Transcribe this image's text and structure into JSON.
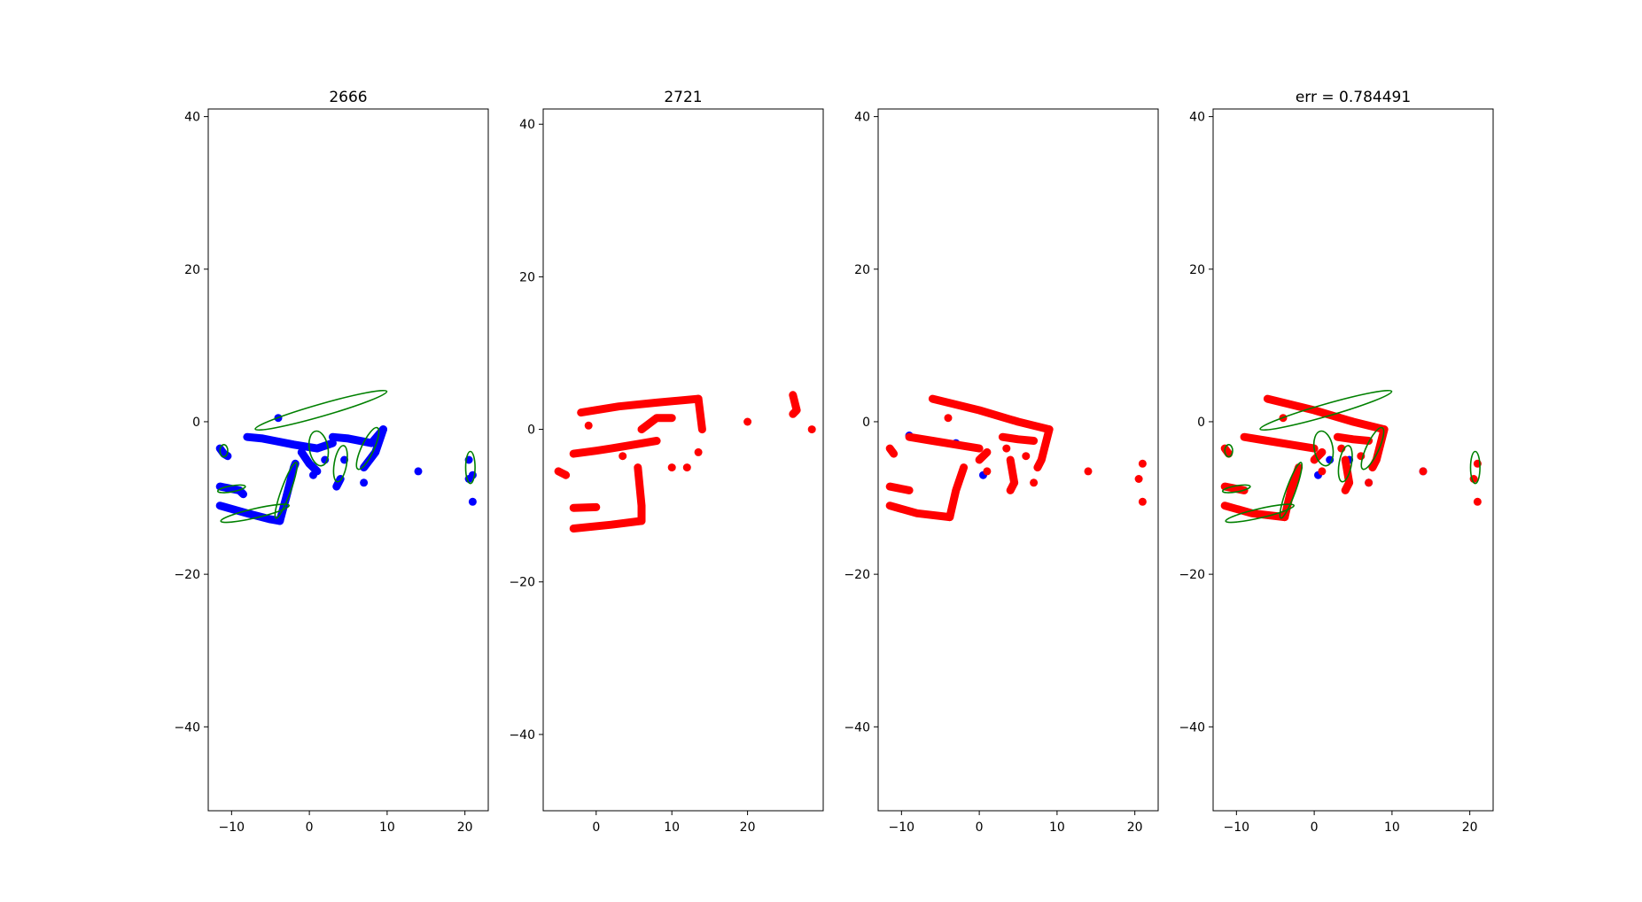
{
  "chart_data": [
    {
      "type": "scatter",
      "title": "2666",
      "xlim": [
        -13,
        23
      ],
      "ylim": [
        -51,
        41
      ],
      "xticks": [
        -10,
        0,
        10,
        20
      ],
      "yticks": [
        -40,
        -20,
        0,
        20,
        40
      ],
      "grid": false,
      "series": [
        {
          "color": "#0000ff",
          "marker": "point",
          "segments": [
            [
              [
                -11.5,
                -3.5
              ],
              [
                -11,
                -4.2
              ],
              [
                -10.5,
                -4.5
              ]
            ],
            [
              [
                -11.5,
                -8.5
              ],
              [
                -9,
                -9
              ],
              [
                -8.5,
                -9.5
              ]
            ],
            [
              [
                -11.5,
                -11
              ],
              [
                -8,
                -12
              ],
              [
                -5,
                -12.8
              ],
              [
                -3.8,
                -13
              ]
            ],
            [
              [
                -3.8,
                -13
              ],
              [
                -3,
                -10
              ],
              [
                -2,
                -6
              ],
              [
                -1.8,
                -5.5
              ]
            ],
            [
              [
                -8,
                -2
              ],
              [
                -6,
                -2.2
              ],
              [
                -4.5,
                -2.5
              ],
              [
                -2,
                -3
              ],
              [
                1,
                -3.5
              ],
              [
                3,
                -2.8
              ]
            ],
            [
              [
                3,
                -2
              ],
              [
                5,
                -2.2
              ],
              [
                8,
                -2.8
              ],
              [
                9.5,
                -1
              ]
            ],
            [
              [
                9.5,
                -1
              ],
              [
                8.5,
                -4
              ],
              [
                7,
                -6
              ]
            ],
            [
              [
                -1,
                -4
              ],
              [
                0,
                -5.5
              ],
              [
                1,
                -6.5
              ]
            ],
            [
              [
                4,
                -7.5
              ],
              [
                3.5,
                -8.5
              ]
            ]
          ],
          "points": [
            [
              -4,
              0.5
            ],
            [
              0.5,
              -7
            ],
            [
              2,
              -5
            ],
            [
              4.5,
              -5
            ],
            [
              7,
              -8
            ],
            [
              14,
              -6.5
            ],
            [
              20.5,
              -7.5
            ],
            [
              21,
              -10.5
            ],
            [
              20.5,
              -5
            ],
            [
              21,
              -7
            ]
          ]
        },
        {
          "color": "#008000",
          "marker": "ellipse",
          "ellipses": [
            {
              "cx": 1.5,
              "cy": 1.5,
              "rx": 8.8,
              "ry": 0.8,
              "angle": -16
            },
            {
              "cx": 1.2,
              "cy": -3.5,
              "rx": 1.2,
              "ry": 2.3,
              "angle": -10
            },
            {
              "cx": 4,
              "cy": -5.5,
              "rx": 0.8,
              "ry": 2.4,
              "angle": 10
            },
            {
              "cx": 7.5,
              "cy": -3.5,
              "rx": 0.8,
              "ry": 3,
              "angle": 25
            },
            {
              "cx": 20.7,
              "cy": -6,
              "rx": 0.6,
              "ry": 2.1,
              "angle": 0
            },
            {
              "cx": -7,
              "cy": -12,
              "rx": 4.5,
              "ry": 0.6,
              "angle": -13
            },
            {
              "cx": -3,
              "cy": -9,
              "rx": 3.8,
              "ry": 0.6,
              "angle": -70
            },
            {
              "cx": -10,
              "cy": -8.8,
              "rx": 1.8,
              "ry": 0.4,
              "angle": -10
            },
            {
              "cx": -11,
              "cy": -3.8,
              "rx": 0.5,
              "ry": 0.8,
              "angle": 0
            }
          ]
        }
      ]
    },
    {
      "type": "scatter",
      "title": "2721",
      "xlim": [
        -7,
        30
      ],
      "ylim": [
        -50,
        42
      ],
      "xticks": [
        0,
        10,
        20
      ],
      "yticks": [
        -40,
        -20,
        0,
        20,
        40
      ],
      "grid": false,
      "series": [
        {
          "color": "#ff0000",
          "marker": "point",
          "segments": [
            [
              [
                -2,
                2.2
              ],
              [
                3,
                3
              ],
              [
                8,
                3.5
              ],
              [
                13.5,
                4
              ]
            ],
            [
              [
                13.5,
                4
              ],
              [
                14,
                0
              ]
            ],
            [
              [
                5.5,
                -5
              ],
              [
                6,
                -10
              ],
              [
                6,
                -12
              ]
            ],
            [
              [
                -3,
                -13
              ],
              [
                2,
                -12.5
              ],
              [
                6,
                -12
              ]
            ],
            [
              [
                -3,
                -10.3
              ],
              [
                0,
                -10.2
              ]
            ],
            [
              [
                -5,
                -5.5
              ],
              [
                -4,
                -6
              ]
            ],
            [
              [
                -3,
                -3.2
              ],
              [
                0,
                -2.8
              ],
              [
                2,
                -2.5
              ],
              [
                5,
                -2
              ],
              [
                8,
                -1.5
              ]
            ],
            [
              [
                6,
                0
              ],
              [
                8,
                1.5
              ],
              [
                10,
                1.5
              ]
            ],
            [
              [
                26,
                4.5
              ],
              [
                26.5,
                2.5
              ],
              [
                26,
                2
              ]
            ]
          ],
          "points": [
            [
              20,
              1
            ],
            [
              28.5,
              0
            ],
            [
              -1,
              0.5
            ],
            [
              10,
              -5
            ],
            [
              12,
              -5
            ],
            [
              13.5,
              -3
            ],
            [
              3.5,
              -3.5
            ]
          ]
        }
      ]
    },
    {
      "type": "scatter",
      "title": "",
      "xlim": [
        -13,
        23
      ],
      "ylim": [
        -51,
        41
      ],
      "xticks": [
        -10,
        0,
        10,
        20
      ],
      "yticks": [
        -40,
        -20,
        0,
        20,
        40
      ],
      "grid": false,
      "series": [
        {
          "color": "#0000ff",
          "marker": "point",
          "points": [
            [
              -9,
              -1.8
            ],
            [
              -3,
              -2.8
            ],
            [
              0.5,
              -7
            ],
            [
              4.5,
              -8
            ]
          ]
        },
        {
          "color": "#ff0000",
          "marker": "point",
          "segments": [
            [
              [
                -6,
                3
              ],
              [
                0,
                1.5
              ],
              [
                5,
                0
              ],
              [
                9,
                -1
              ]
            ],
            [
              [
                9,
                -1
              ],
              [
                8,
                -5
              ],
              [
                7.5,
                -6
              ]
            ],
            [
              [
                -3.8,
                -12.5
              ],
              [
                -3,
                -9
              ],
              [
                -2,
                -6
              ]
            ],
            [
              [
                -11.5,
                -11
              ],
              [
                -8,
                -12
              ],
              [
                -3.8,
                -12.5
              ]
            ],
            [
              [
                -11.5,
                -8.5
              ],
              [
                -9,
                -9
              ]
            ],
            [
              [
                -11.5,
                -3.5
              ],
              [
                -11,
                -4.2
              ]
            ],
            [
              [
                -9,
                -2
              ],
              [
                -6,
                -2.5
              ],
              [
                -3,
                -3
              ],
              [
                0,
                -3.5
              ]
            ],
            [
              [
                3,
                -2
              ],
              [
                5,
                -2.3
              ],
              [
                7,
                -2.5
              ]
            ],
            [
              [
                0,
                -5
              ],
              [
                1,
                -4
              ]
            ],
            [
              [
                4,
                -5
              ],
              [
                4.5,
                -8
              ],
              [
                4,
                -9
              ]
            ]
          ],
          "points": [
            [
              -4,
              0.5
            ],
            [
              1,
              -6.5
            ],
            [
              7,
              -8
            ],
            [
              14,
              -6.5
            ],
            [
              20.5,
              -7.5
            ],
            [
              21,
              -10.5
            ],
            [
              21,
              -5.5
            ],
            [
              6,
              -4.5
            ],
            [
              3.5,
              -3.5
            ]
          ]
        }
      ]
    },
    {
      "type": "scatter",
      "title": "err = 0.784491",
      "xlim": [
        -13,
        23
      ],
      "ylim": [
        -51,
        41
      ],
      "xticks": [
        -10,
        0,
        10,
        20
      ],
      "yticks": [
        -40,
        -20,
        0,
        20,
        40
      ],
      "grid": false,
      "series": [
        {
          "color": "#0000ff",
          "marker": "point",
          "points": [
            [
              0.5,
              -7
            ],
            [
              2,
              -5
            ],
            [
              4.5,
              -5
            ],
            [
              7,
              -8
            ],
            [
              14,
              -6.5
            ]
          ]
        },
        {
          "color": "#ff0000",
          "marker": "point",
          "segments": [
            [
              [
                -6,
                3
              ],
              [
                0,
                1.5
              ],
              [
                5,
                0
              ],
              [
                9,
                -1
              ]
            ],
            [
              [
                9,
                -1
              ],
              [
                8,
                -5
              ],
              [
                7.5,
                -6
              ]
            ],
            [
              [
                -3.8,
                -12.5
              ],
              [
                -3,
                -9
              ],
              [
                -2,
                -6
              ]
            ],
            [
              [
                -11.5,
                -11
              ],
              [
                -8,
                -12
              ],
              [
                -3.8,
                -12.5
              ]
            ],
            [
              [
                -11.5,
                -8.5
              ],
              [
                -9,
                -9
              ]
            ],
            [
              [
                -11.5,
                -3.5
              ],
              [
                -11,
                -4.2
              ]
            ],
            [
              [
                -9,
                -2
              ],
              [
                -6,
                -2.5
              ],
              [
                -3,
                -3
              ],
              [
                0,
                -3.5
              ]
            ],
            [
              [
                3,
                -2
              ],
              [
                5,
                -2.3
              ],
              [
                7,
                -2.5
              ]
            ],
            [
              [
                0,
                -5
              ],
              [
                1,
                -4
              ]
            ],
            [
              [
                4,
                -5
              ],
              [
                4.5,
                -8
              ],
              [
                4,
                -9
              ]
            ]
          ],
          "points": [
            [
              -4,
              0.5
            ],
            [
              1,
              -6.5
            ],
            [
              7,
              -8
            ],
            [
              14,
              -6.5
            ],
            [
              20.5,
              -7.5
            ],
            [
              21,
              -10.5
            ],
            [
              21,
              -5.5
            ],
            [
              6,
              -4.5
            ],
            [
              3.5,
              -3.5
            ]
          ]
        },
        {
          "color": "#008000",
          "marker": "ellipse",
          "ellipses": [
            {
              "cx": 1.5,
              "cy": 1.5,
              "rx": 8.8,
              "ry": 0.8,
              "angle": -16
            },
            {
              "cx": 1.2,
              "cy": -3.5,
              "rx": 1.2,
              "ry": 2.3,
              "angle": -10
            },
            {
              "cx": 4,
              "cy": -5.5,
              "rx": 0.8,
              "ry": 2.4,
              "angle": 10
            },
            {
              "cx": 7.5,
              "cy": -3.5,
              "rx": 0.8,
              "ry": 3,
              "angle": 25
            },
            {
              "cx": 20.7,
              "cy": -6,
              "rx": 0.6,
              "ry": 2.1,
              "angle": 0
            },
            {
              "cx": -7,
              "cy": -12,
              "rx": 4.5,
              "ry": 0.6,
              "angle": -13
            },
            {
              "cx": -3,
              "cy": -9,
              "rx": 3.8,
              "ry": 0.6,
              "angle": -70
            },
            {
              "cx": -10,
              "cy": -8.8,
              "rx": 1.8,
              "ry": 0.4,
              "angle": -10
            },
            {
              "cx": -11,
              "cy": -3.8,
              "rx": 0.5,
              "ry": 0.8,
              "angle": 0
            }
          ]
        }
      ]
    }
  ]
}
